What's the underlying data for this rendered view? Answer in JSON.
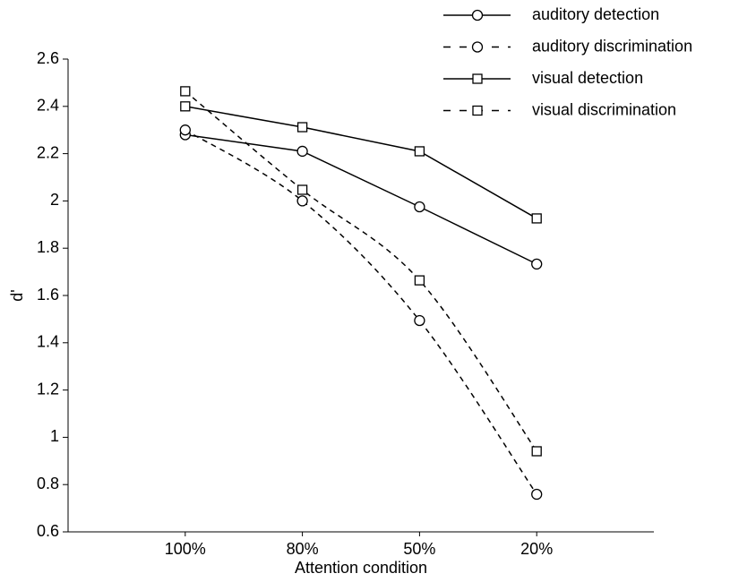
{
  "chart_data": {
    "type": "line",
    "xlabel": "Attention condition",
    "ylabel": "d'",
    "categories": [
      "100%",
      "80%",
      "50%",
      "20%"
    ],
    "series": [
      {
        "name": "auditory detection",
        "color": "#000000",
        "dash": false,
        "smooth": false,
        "marker": "circle",
        "values": [
          2.28,
          2.21,
          1.975,
          1.733
        ]
      },
      {
        "name": "auditory discrimination",
        "color": "#000000",
        "dash": true,
        "smooth": true,
        "marker": "circle",
        "values": [
          2.3,
          2.0,
          1.494,
          0.759
        ]
      },
      {
        "name": "visual detection",
        "color": "#000000",
        "dash": false,
        "smooth": false,
        "marker": "square",
        "values": [
          2.4,
          2.312,
          2.21,
          1.926
        ]
      },
      {
        "name": "visual discrimination",
        "color": "#000000",
        "dash": true,
        "smooth": true,
        "marker": "square",
        "values": [
          2.464,
          2.047,
          1.664,
          0.941
        ]
      }
    ],
    "ylim": [
      0.6,
      2.6
    ],
    "yticks": [
      0.6,
      0.8,
      1,
      1.2,
      1.4,
      1.6,
      1.8,
      2,
      2.2,
      2.4,
      2.6
    ],
    "grid": false,
    "legend": "top-right"
  }
}
